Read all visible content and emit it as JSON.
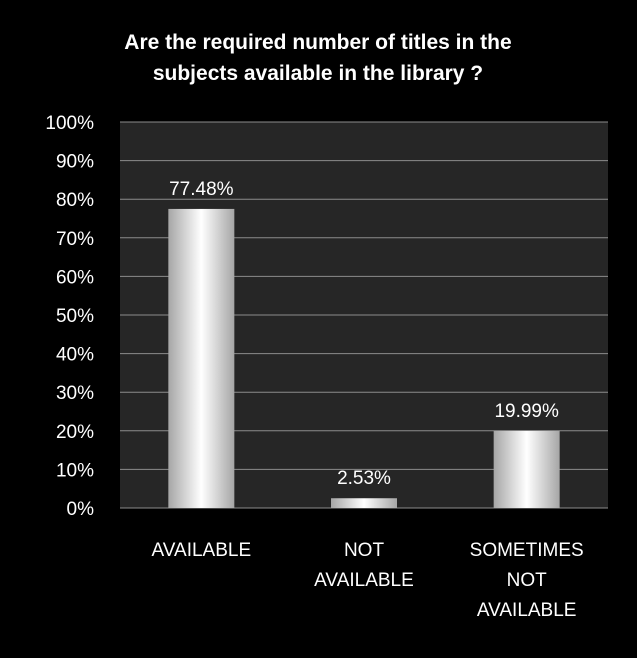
{
  "chart_data": {
    "type": "bar",
    "title": "Are the required number of titles in the subjects available in the library ?",
    "title_lines": [
      "Are the required number of titles in the",
      "subjects available in the library ?"
    ],
    "categories": [
      "AVAILABLE",
      "NOT AVAILABLE",
      "SOMETIMES NOT AVAILABLE"
    ],
    "category_lines": [
      [
        "AVAILABLE"
      ],
      [
        "NOT",
        "AVAILABLE"
      ],
      [
        "SOMETIMES",
        "NOT",
        "AVAILABLE"
      ]
    ],
    "values": [
      77.48,
      2.53,
      19.99
    ],
    "data_labels": [
      "77.48%",
      "2.53%",
      "19.99%"
    ],
    "ylim": [
      0,
      100
    ],
    "yticks": [
      0,
      10,
      20,
      30,
      40,
      50,
      60,
      70,
      80,
      90,
      100
    ],
    "ytick_labels": [
      "0%",
      "10%",
      "20%",
      "30%",
      "40%",
      "50%",
      "60%",
      "70%",
      "80%",
      "90%",
      "100%"
    ],
    "xlabel": "",
    "ylabel": "",
    "grid": true,
    "legend": "none",
    "colors": {
      "background": "#000000",
      "plot_background": "#262626",
      "gridline": "#8c8c8c",
      "bar_center": "#ffffff",
      "bar_edge": "#a6a6a6",
      "text": "#ffffff"
    }
  }
}
